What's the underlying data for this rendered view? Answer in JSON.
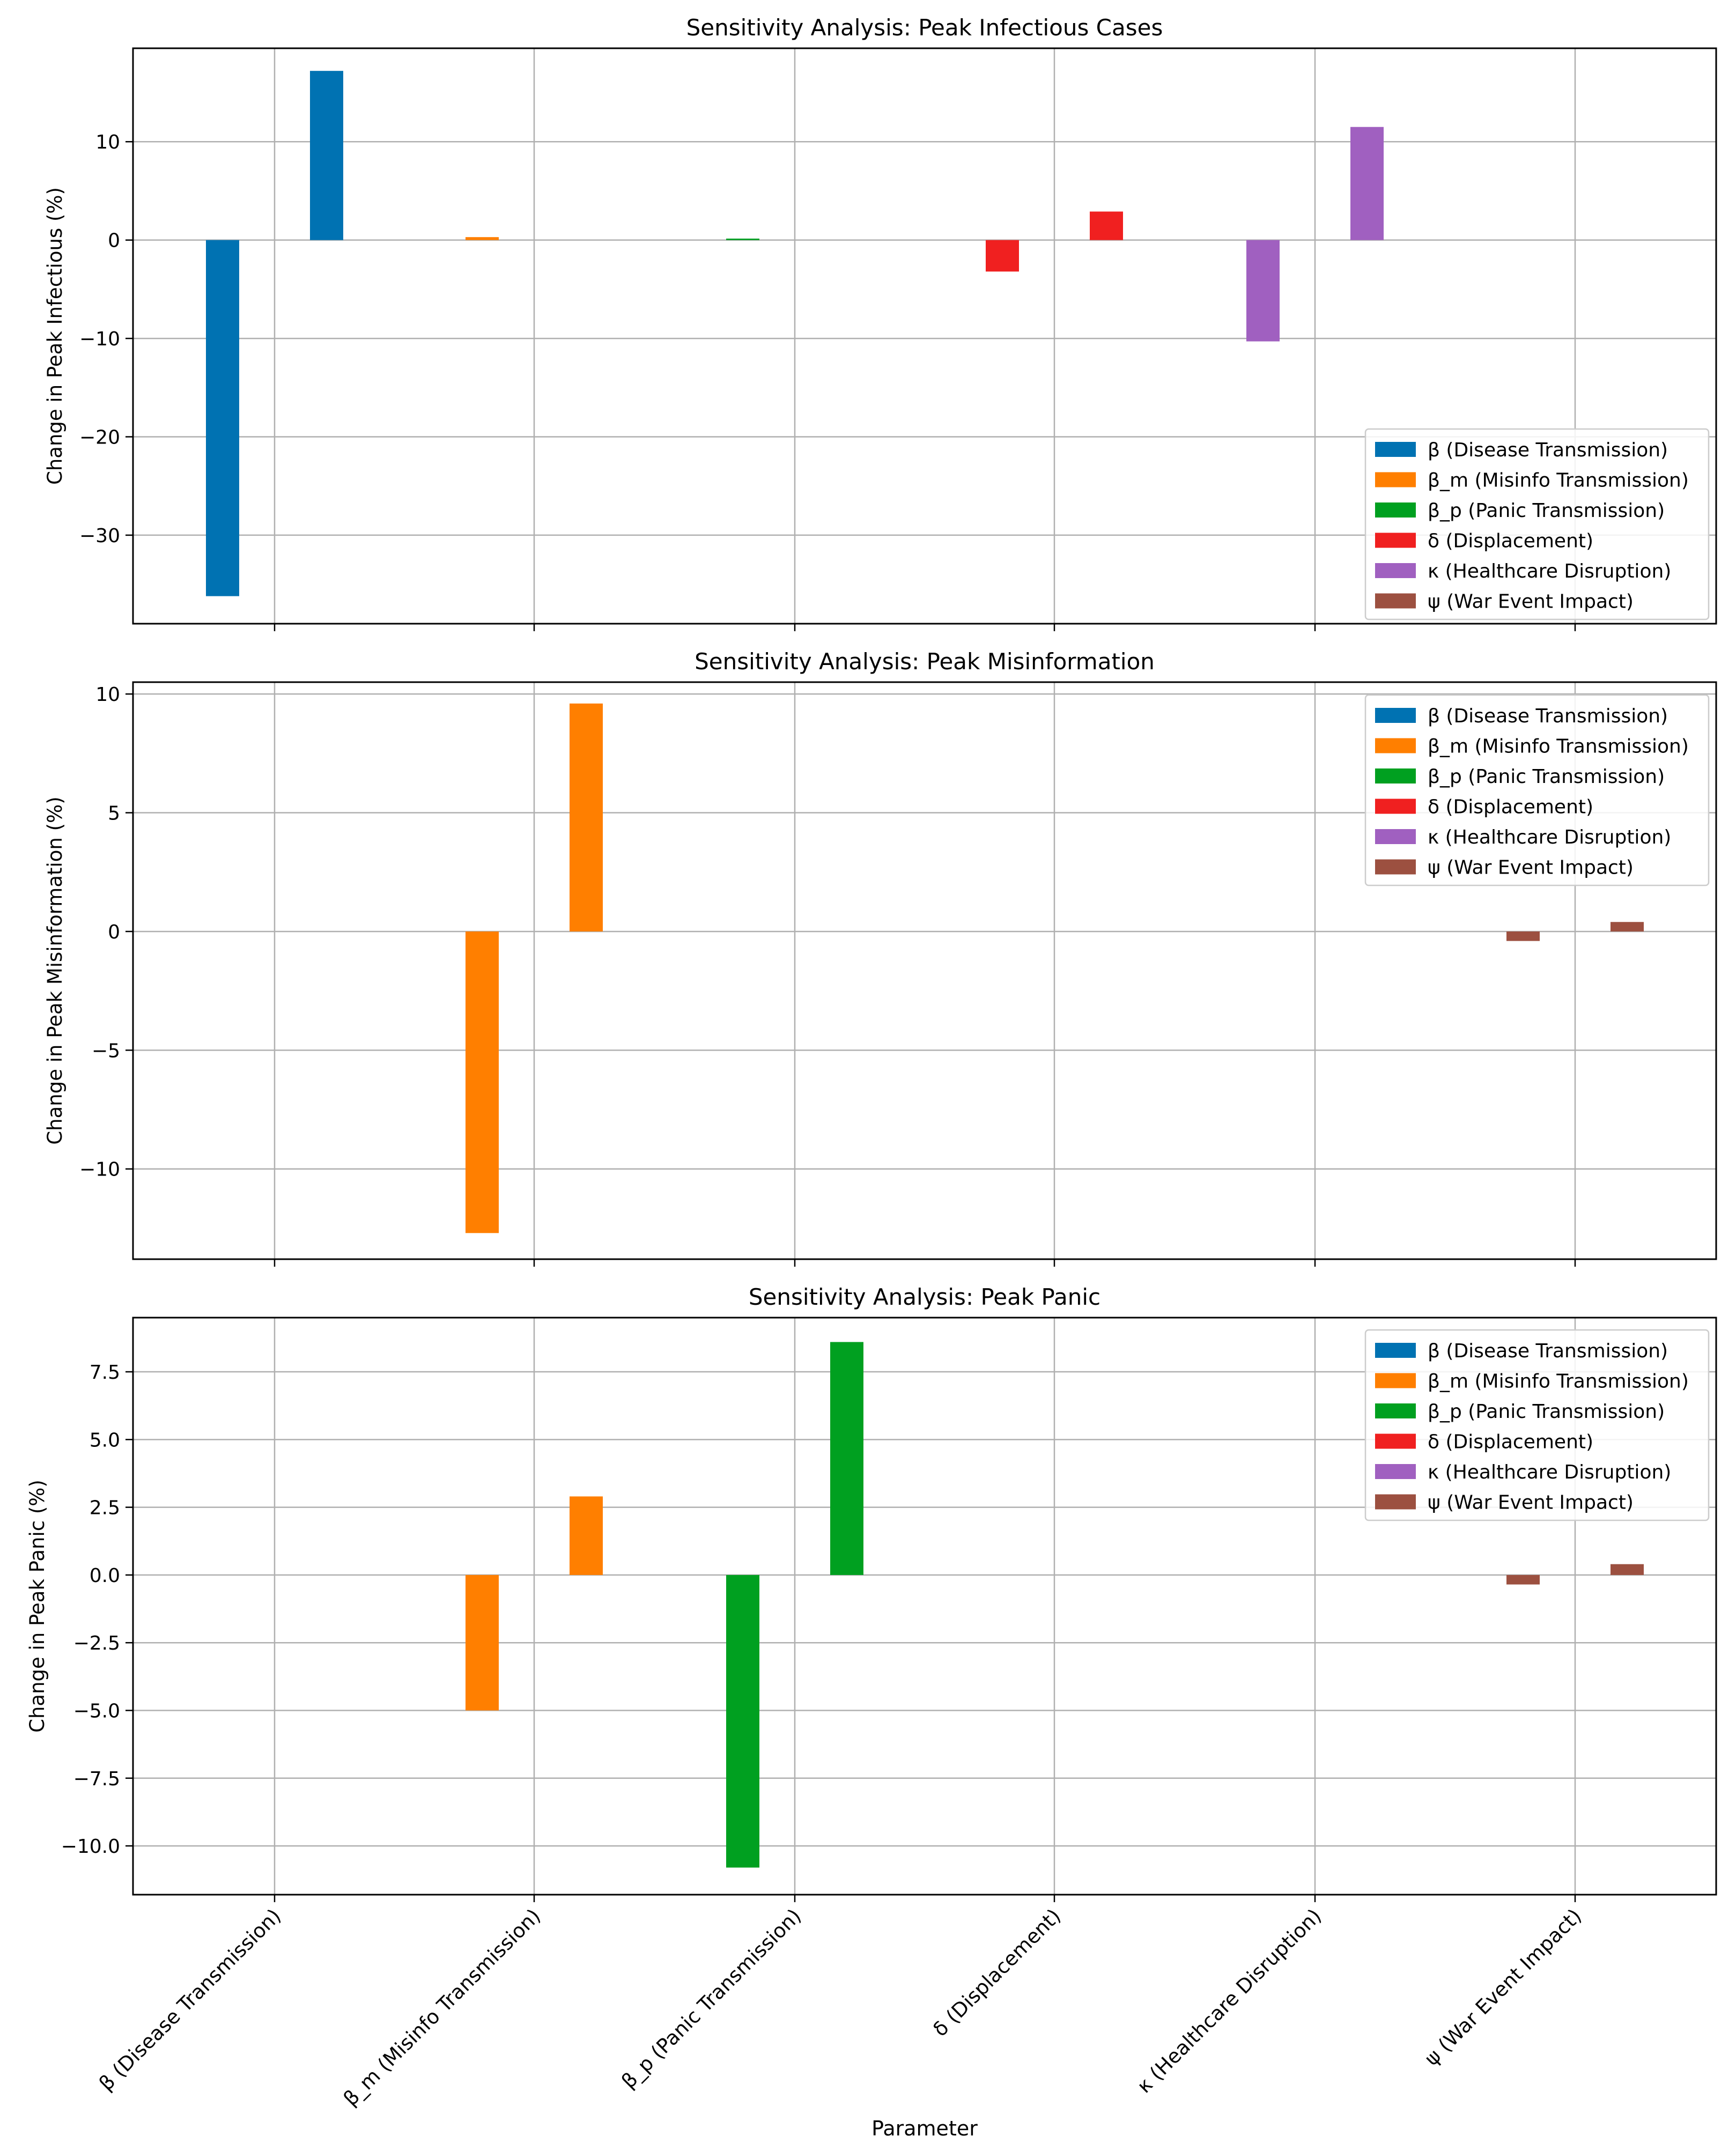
{
  "figure": {
    "xlabel": "Parameter",
    "categories": [
      "β (Disease Transmission)",
      "β_m (Misinfo Transmission)",
      "β_p (Panic Transmission)",
      "δ (Displacement)",
      "κ (Healthcare Disruption)",
      "ψ (War Event Impact)"
    ],
    "legend": [
      {
        "name": "β (Disease Transmission)",
        "color": "#0072b2"
      },
      {
        "name": "β_m (Misinfo Transmission)",
        "color": "#ff7f00"
      },
      {
        "name": "β_p (Panic Transmission)",
        "color": "#00a020"
      },
      {
        "name": "δ (Displacement)",
        "color": "#f02020"
      },
      {
        "name": "κ (Healthcare Disruption)",
        "color": "#a060c0"
      },
      {
        "name": "ψ (War Event Impact)",
        "color": "#9c5040"
      }
    ]
  },
  "chart_data": [
    {
      "type": "bar",
      "title": "Sensitivity Analysis: Peak Infectious Cases",
      "ylabel": "Change in Peak Infectious (%)",
      "xlabel": "",
      "ylim": [
        -39,
        19.5
      ],
      "yticks": [
        10,
        0,
        -10,
        -20,
        -30
      ],
      "ytick_labels": [
        "10",
        "0",
        "−10",
        "−20",
        "−30"
      ],
      "legend_position": "lower-right",
      "grid": true,
      "series": [
        {
          "name": "β (Disease Transmission)",
          "values": [
            [
              -36.2,
              17.2
            ],
            null,
            null,
            null,
            null,
            null
          ]
        },
        {
          "name": "β_m (Misinfo Transmission)",
          "values": [
            null,
            [
              0.3,
              0
            ],
            null,
            null,
            null,
            null
          ]
        },
        {
          "name": "β_p (Panic Transmission)",
          "values": [
            null,
            null,
            [
              0.15,
              0
            ],
            null,
            null,
            null
          ]
        },
        {
          "name": "δ (Displacement)",
          "values": [
            null,
            null,
            null,
            [
              -3.2,
              2.9
            ],
            null,
            null
          ]
        },
        {
          "name": "κ (Healthcare Disruption)",
          "values": [
            null,
            null,
            null,
            null,
            [
              -10.3,
              11.5
            ],
            null
          ]
        },
        {
          "name": "ψ (War Event Impact)",
          "values": [
            null,
            null,
            null,
            null,
            null,
            [
              0,
              0
            ]
          ]
        }
      ]
    },
    {
      "type": "bar",
      "title": "Sensitivity Analysis: Peak Misinformation",
      "ylabel": "Change in Peak Misinformation (%)",
      "xlabel": "",
      "ylim": [
        -13.8,
        10.5
      ],
      "yticks": [
        10,
        5,
        0,
        -5,
        -10
      ],
      "ytick_labels": [
        "10",
        "5",
        "0",
        "−5",
        "−10"
      ],
      "legend_position": "upper-right",
      "grid": true,
      "series": [
        {
          "name": "β (Disease Transmission)",
          "values": [
            [
              0,
              0
            ],
            null,
            null,
            null,
            null,
            null
          ]
        },
        {
          "name": "β_m (Misinfo Transmission)",
          "values": [
            null,
            [
              -12.7,
              9.6
            ],
            null,
            null,
            null,
            null
          ]
        },
        {
          "name": "β_p (Panic Transmission)",
          "values": [
            null,
            null,
            [
              0,
              0
            ],
            null,
            null,
            null
          ]
        },
        {
          "name": "δ (Displacement)",
          "values": [
            null,
            null,
            null,
            [
              0,
              0
            ],
            null,
            null
          ]
        },
        {
          "name": "κ (Healthcare Disruption)",
          "values": [
            null,
            null,
            null,
            null,
            [
              0,
              0
            ],
            null
          ]
        },
        {
          "name": "ψ (War Event Impact)",
          "values": [
            null,
            null,
            null,
            null,
            null,
            [
              -0.4,
              0.4
            ]
          ]
        }
      ]
    },
    {
      "type": "bar",
      "title": "Sensitivity Analysis: Peak Panic",
      "ylabel": "Change in Peak Panic (%)",
      "xlabel": "Parameter",
      "ylim": [
        -11.8,
        9.5
      ],
      "yticks": [
        7.5,
        5.0,
        2.5,
        0.0,
        -2.5,
        -5.0,
        -7.5,
        -10.0
      ],
      "ytick_labels": [
        "7.5",
        "5.0",
        "2.5",
        "0.0",
        "−2.5",
        "−5.0",
        "−7.5",
        "−10.0"
      ],
      "legend_position": "upper-right",
      "grid": true,
      "series": [
        {
          "name": "β (Disease Transmission)",
          "values": [
            [
              0,
              0
            ],
            null,
            null,
            null,
            null,
            null
          ]
        },
        {
          "name": "β_m (Misinfo Transmission)",
          "values": [
            null,
            [
              -5.0,
              2.9
            ],
            null,
            null,
            null,
            null
          ]
        },
        {
          "name": "β_p (Panic Transmission)",
          "values": [
            null,
            null,
            [
              -10.8,
              8.6
            ],
            null,
            null,
            null
          ]
        },
        {
          "name": "δ (Displacement)",
          "values": [
            null,
            null,
            null,
            [
              0,
              0
            ],
            null,
            null
          ]
        },
        {
          "name": "κ (Healthcare Disruption)",
          "values": [
            null,
            null,
            null,
            null,
            [
              0,
              0
            ],
            null
          ]
        },
        {
          "name": "ψ (War Event Impact)",
          "values": [
            null,
            null,
            null,
            null,
            null,
            [
              -0.35,
              0.4
            ]
          ]
        }
      ]
    }
  ]
}
